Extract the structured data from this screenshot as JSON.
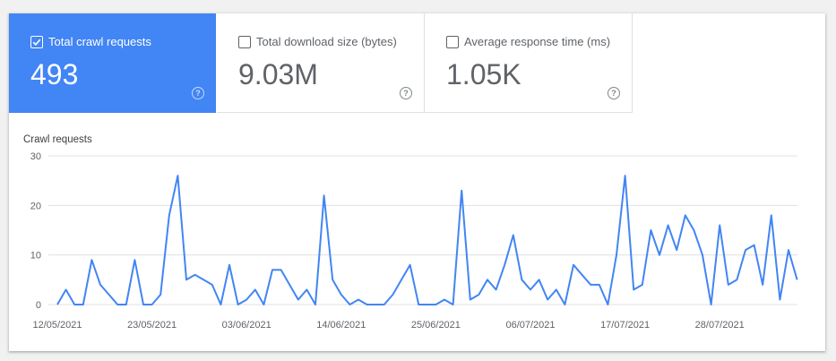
{
  "colors": {
    "accent": "#4285f4",
    "line": "#4285f4",
    "grid": "#e0e0e0"
  },
  "tiles": [
    {
      "label": "Total crawl requests",
      "value": "493",
      "checked": true,
      "help_icon": "help-circle-icon"
    },
    {
      "label": "Total download size (bytes)",
      "value": "9.03M",
      "checked": false,
      "help_icon": "help-circle-icon"
    },
    {
      "label": "Average response time (ms)",
      "value": "1.05K",
      "checked": false,
      "help_icon": "help-circle-icon"
    }
  ],
  "chart_data": {
    "type": "line",
    "title": "Crawl requests",
    "ylim": [
      0,
      30
    ],
    "yticks": [
      "0",
      "10",
      "20",
      "30"
    ],
    "grid": true,
    "xtick_labels": [
      "12/05/2021",
      "23/05/2021",
      "03/06/2021",
      "14/06/2021",
      "25/06/2021",
      "06/07/2021",
      "17/07/2021",
      "28/07/2021"
    ],
    "xtick_indices": [
      0,
      11,
      22,
      33,
      44,
      55,
      66,
      77
    ],
    "series": [
      {
        "values": [
          0,
          3,
          0,
          0,
          9,
          4,
          2,
          0,
          0,
          9,
          0,
          0,
          2,
          18,
          26,
          5,
          6,
          5,
          4,
          0,
          8,
          0,
          1,
          3,
          0,
          7,
          7,
          4,
          1,
          3,
          0,
          22,
          5,
          2,
          0,
          1,
          0,
          0,
          0,
          2,
          5,
          8,
          0,
          0,
          0,
          1,
          0,
          23,
          1,
          2,
          5,
          3,
          8,
          14,
          5,
          3,
          5,
          1,
          3,
          0,
          8,
          6,
          4,
          4,
          0,
          10,
          26,
          3,
          4,
          15,
          10,
          16,
          11,
          18,
          15,
          10,
          0,
          16,
          4,
          5,
          11,
          12,
          4,
          18,
          1,
          11,
          5
        ]
      }
    ]
  }
}
